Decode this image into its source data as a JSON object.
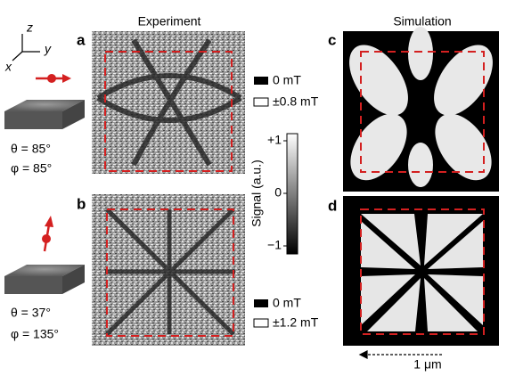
{
  "axes": {
    "z": "z",
    "y": "y",
    "x": "x"
  },
  "columns": {
    "experiment": "Experiment",
    "simulation": "Simulation"
  },
  "rows": [
    {
      "theta": "θ = 85°",
      "phi": "φ = 85°",
      "experiment_panel": "a",
      "simulation_panel": "c",
      "legend": [
        "0 mT",
        "±0.8 mT"
      ]
    },
    {
      "theta": "θ = 37°",
      "phi": "φ = 135°",
      "experiment_panel": "b",
      "simulation_panel": "d",
      "legend": [
        "0 mT",
        "±1.2 mT"
      ]
    }
  ],
  "colorbar": {
    "label": "Signal (a.u.)",
    "ticks": [
      "+1",
      "0",
      "−1"
    ]
  },
  "scale_bar": "1 μm"
}
